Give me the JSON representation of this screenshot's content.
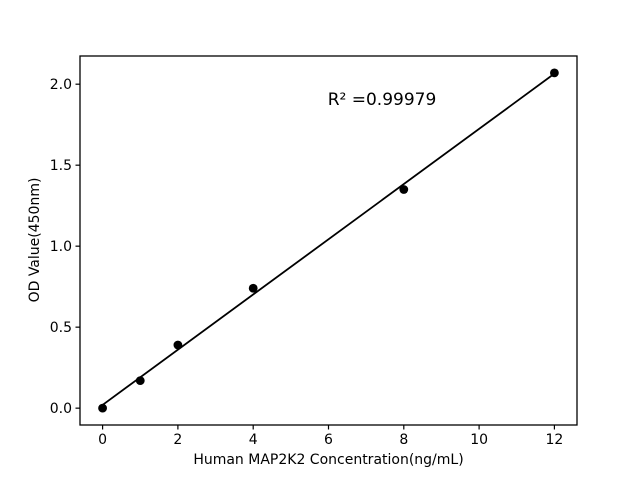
{
  "figure": {
    "background": "#ffffff"
  },
  "chart_data": {
    "type": "scatter",
    "title": "",
    "xlabel": "Human MAP2K2 Concentration(ng/mL)",
    "ylabel": "OD Value(450nm)",
    "annotation": {
      "text": "R² =0.99979",
      "x": 7.42,
      "y": 1.9
    },
    "points": [
      [
        0,
        0.0
      ],
      [
        1,
        0.17
      ],
      [
        2,
        0.39
      ],
      [
        4,
        0.74
      ],
      [
        8,
        1.35
      ],
      [
        12,
        2.07
      ]
    ],
    "fit_line": {
      "x1": 0,
      "y1": 0.02,
      "x2": 12,
      "y2": 2.065
    },
    "xticks": [
      0,
      2,
      4,
      6,
      8,
      10,
      12
    ],
    "xtick_labels": [
      "0",
      "2",
      "4",
      "6",
      "8",
      "10",
      "12"
    ],
    "yticks": [
      0.0,
      0.5,
      1.0,
      1.5,
      2.0
    ],
    "ytick_labels": [
      "0.0",
      "0.5",
      "1.0",
      "1.5",
      "2.0"
    ],
    "xlim": [
      -0.6,
      12.6
    ],
    "ylim": [
      -0.104,
      2.174
    ],
    "grid": false,
    "legend": null,
    "legend_position": null,
    "colors": {
      "marker": "#000000",
      "line": "#000000",
      "axis": "#000000",
      "text": "#000000",
      "background": "#ffffff"
    }
  }
}
